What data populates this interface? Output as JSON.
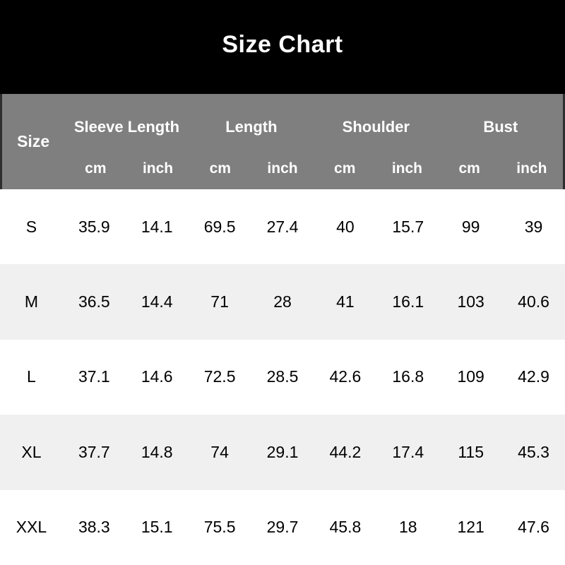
{
  "title": "Size Chart",
  "colors": {
    "title_bg": "#000000",
    "title_text": "#ffffff",
    "header_bg": "#7f7f7f",
    "header_border": "#2e2e2e",
    "header_text": "#ffffff",
    "row_bg": "#ffffff",
    "row_alt_bg": "#f0f0f0",
    "data_text": "#000000"
  },
  "table": {
    "size_label": "Size",
    "groups": [
      {
        "label": "Sleeve Length"
      },
      {
        "label": "Length"
      },
      {
        "label": "Shoulder"
      },
      {
        "label": "Bust"
      }
    ],
    "units": [
      "cm",
      "inch",
      "cm",
      "inch",
      "cm",
      "inch",
      "cm",
      "inch"
    ],
    "rows": [
      {
        "size": "S",
        "values": [
          "35.9",
          "14.1",
          "69.5",
          "27.4",
          "40",
          "15.7",
          "99",
          "39"
        ]
      },
      {
        "size": "M",
        "values": [
          "36.5",
          "14.4",
          "71",
          "28",
          "41",
          "16.1",
          "103",
          "40.6"
        ]
      },
      {
        "size": "L",
        "values": [
          "37.1",
          "14.6",
          "72.5",
          "28.5",
          "42.6",
          "16.8",
          "109",
          "42.9"
        ]
      },
      {
        "size": "XL",
        "values": [
          "37.7",
          "14.8",
          "74",
          "29.1",
          "44.2",
          "17.4",
          "115",
          "45.3"
        ]
      },
      {
        "size": "XXL",
        "values": [
          "38.3",
          "15.1",
          "75.5",
          "29.7",
          "45.8",
          "18",
          "121",
          "47.6"
        ]
      }
    ]
  },
  "chart_data": {
    "type": "table",
    "title": "Size Chart",
    "columns": [
      "Size",
      "Sleeve Length (cm)",
      "Sleeve Length (inch)",
      "Length (cm)",
      "Length (inch)",
      "Shoulder (cm)",
      "Shoulder (inch)",
      "Bust (cm)",
      "Bust (inch)"
    ],
    "rows": [
      [
        "S",
        35.9,
        14.1,
        69.5,
        27.4,
        40,
        15.7,
        99,
        39
      ],
      [
        "M",
        36.5,
        14.4,
        71,
        28,
        41,
        16.1,
        103,
        40.6
      ],
      [
        "L",
        37.1,
        14.6,
        72.5,
        28.5,
        42.6,
        16.8,
        109,
        42.9
      ],
      [
        "XL",
        37.7,
        14.8,
        74,
        29.1,
        44.2,
        17.4,
        115,
        45.3
      ],
      [
        "XXL",
        38.3,
        15.1,
        75.5,
        29.7,
        45.8,
        18,
        121,
        47.6
      ]
    ],
    "layout_hints": {
      "title_band": "black, white bold centered title",
      "header": "two-row gray header with merged group labels over cm/inch sub-columns",
      "zebra_striping": "white / light-gray alternating data rows"
    }
  }
}
